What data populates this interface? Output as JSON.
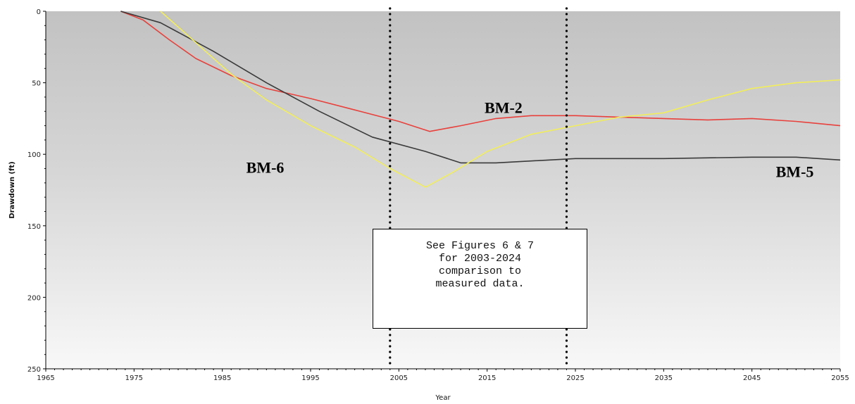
{
  "chart_data": {
    "type": "line",
    "title": "",
    "xlabel": "Year",
    "ylabel": "Drawdown (ft)",
    "xlim": [
      1965,
      2055
    ],
    "ylim": [
      250,
      0
    ],
    "y_inverted": true,
    "x_ticks": [
      1965,
      1975,
      1985,
      1995,
      2005,
      2015,
      2025,
      2035,
      2045,
      2055
    ],
    "y_ticks": [
      0,
      50,
      100,
      150,
      200,
      250
    ],
    "grid": false,
    "series": [
      {
        "name": "BM-2",
        "color": "#e8413c",
        "x": [
          1973.5,
          1976,
          1979,
          1982,
          1986,
          1990,
          1995,
          2000,
          2005,
          2008.5,
          2012,
          2016,
          2020,
          2025,
          2030,
          2035,
          2040,
          2045,
          2050,
          2055
        ],
        "y": [
          0,
          6,
          20,
          33,
          45,
          54,
          61,
          69,
          77,
          84,
          80,
          75,
          73,
          73,
          74,
          75,
          76,
          75,
          77,
          80
        ]
      },
      {
        "name": "BM-5",
        "color": "#3a3a3a",
        "x": [
          1973.5,
          1978,
          1984,
          1990,
          1996,
          2002,
          2008,
          2012,
          2016,
          2025,
          2035,
          2045,
          2050,
          2055
        ],
        "y": [
          0,
          8,
          28,
          50,
          70,
          88,
          98,
          106,
          106,
          103,
          103,
          102,
          102,
          104
        ]
      },
      {
        "name": "BM-6",
        "color": "#f2ee5a",
        "x": [
          1978,
          1982,
          1986,
          1990,
          1995,
          2000,
          2004,
          2008,
          2011,
          2015,
          2020,
          2025,
          2030,
          2035,
          2040,
          2045,
          2050,
          2055
        ],
        "y": [
          0,
          22,
          44,
          62,
          80,
          95,
          110,
          123,
          113,
          98,
          86,
          80,
          74,
          71,
          62,
          54,
          50,
          48
        ]
      }
    ],
    "annotations": {
      "vertical_lines": [
        2004,
        2024
      ],
      "note": "See Figures 6 & 7\nfor 2003-2024\ncomparison to\nmeasured data."
    }
  }
}
